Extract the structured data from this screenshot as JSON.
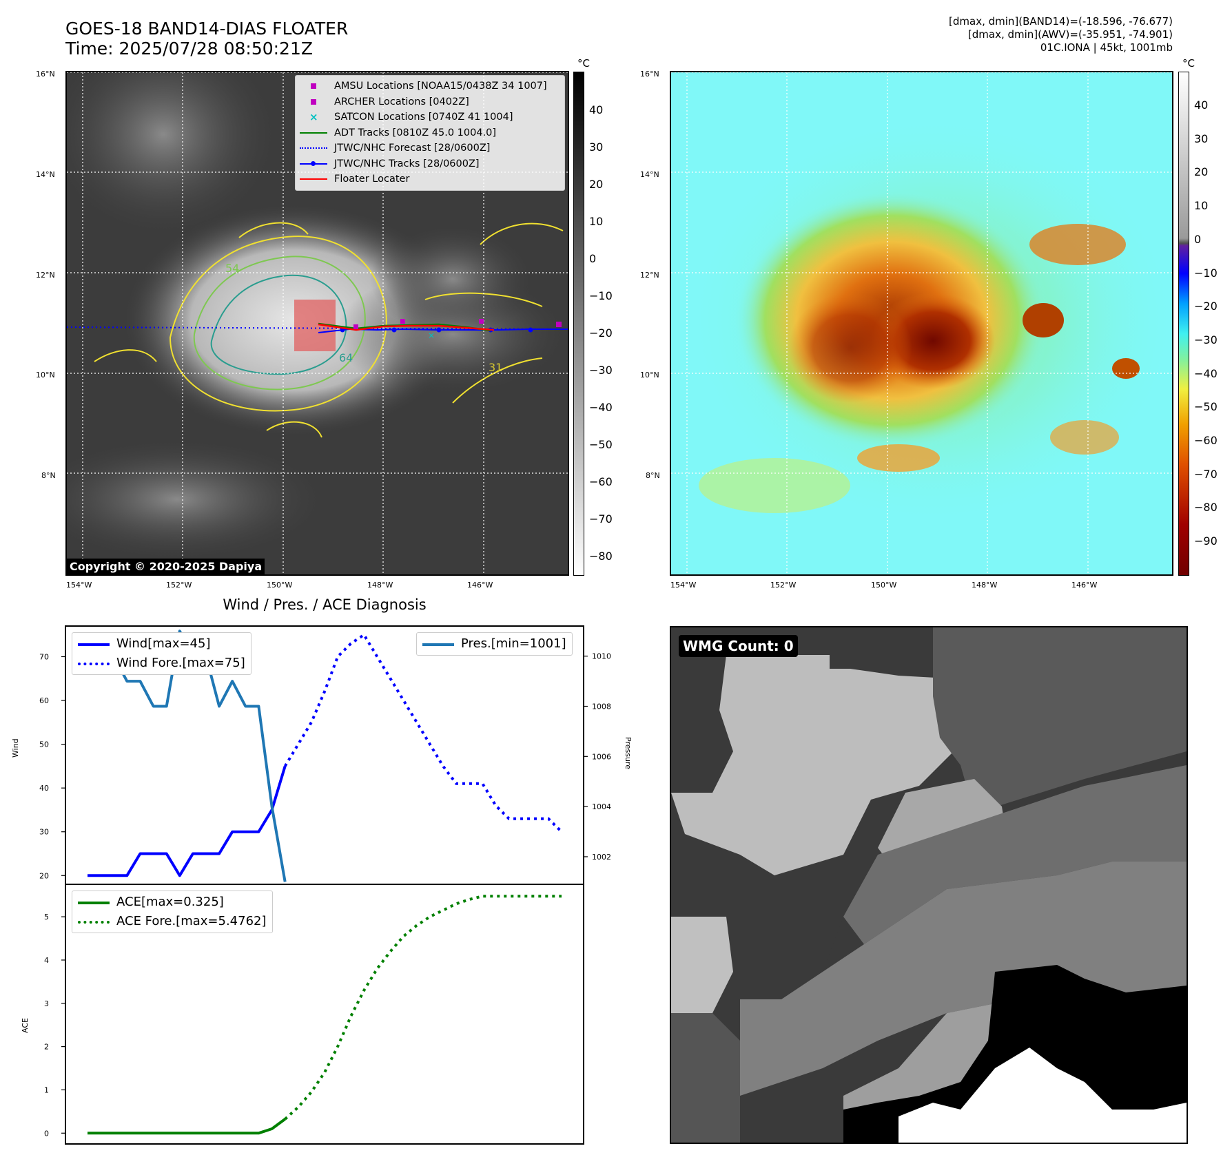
{
  "header": {
    "title_line1": "GOES-18 BAND14-DIAS FLOATER",
    "title_line2": "Time: 2025/07/28 08:50:21Z",
    "info_line1": "[dmax, dmin](BAND14)=(-18.596, -76.677)",
    "info_line2": "[dmax, dmin](AWV)=(-35.951, -74.901)",
    "info_line3": "01C.IONA | 45kt, 1001mb"
  },
  "map": {
    "lat_labels": [
      "16°N",
      "14°N",
      "12°N",
      "10°N",
      "8°N"
    ],
    "lon_labels": [
      "154°W",
      "152°W",
      "150°W",
      "148°W",
      "146°W"
    ],
    "copyright": "Copyright © 2020-2025 Dapiya",
    "legend": [
      {
        "label": "AMSU Locations [NOAA15/0438Z 34 1007]",
        "symbol": "square",
        "color": "#c000c0"
      },
      {
        "label": "ARCHER Locations [0402Z]",
        "symbol": "square",
        "color": "#c000c0"
      },
      {
        "label": "SATCON Locations [0740Z 41 1004]",
        "symbol": "x",
        "color": "#00c0c0"
      },
      {
        "label": "ADT Tracks [0810Z 45.0 1004.0]",
        "symbol": "line",
        "color": "#008000"
      },
      {
        "label": "JTWC/NHC Forecast [28/0600Z]",
        "symbol": "dotted",
        "color": "#0000ff"
      },
      {
        "label": "JTWC/NHC Tracks [28/0600Z]",
        "symbol": "line-dot",
        "color": "#0000ff"
      },
      {
        "label": "Floater Locater",
        "symbol": "line",
        "color": "#ff0000"
      }
    ],
    "contour_labels": [
      "54",
      "64",
      "31"
    ]
  },
  "colorbar_gray": {
    "unit": "°C",
    "ticks": [
      "40",
      "30",
      "20",
      "10",
      "0",
      "−10",
      "−20",
      "−30",
      "−40",
      "−50",
      "−60",
      "−70",
      "−80"
    ]
  },
  "colorbar_color": {
    "unit": "°C",
    "ticks": [
      "40",
      "30",
      "20",
      "10",
      "0",
      "−10",
      "−20",
      "−30",
      "−40",
      "−50",
      "−60",
      "−70",
      "−80",
      "−90"
    ]
  },
  "wmg": {
    "label": "WMG Count: 0"
  },
  "chart_data": [
    {
      "type": "line",
      "title": "Wind / Pres. / ACE Diagnosis",
      "ylabel": "Wind",
      "ylabel_right": "Pressure",
      "ylim": [
        18,
        77
      ],
      "ylim_right": [
        1000.9,
        1011.2
      ],
      "yticks": [
        20,
        30,
        40,
        50,
        60,
        70
      ],
      "yticks_right": [
        1002,
        1004,
        1006,
        1008,
        1010
      ],
      "x": [
        0,
        1,
        2,
        3,
        4,
        5,
        6,
        7,
        8,
        9,
        10,
        11,
        12,
        13,
        14,
        15,
        16,
        17,
        18,
        19,
        20,
        21,
        22,
        23,
        24,
        25,
        26,
        27,
        28,
        29,
        30,
        31,
        32,
        33,
        34,
        35,
        36
      ],
      "series": [
        {
          "name": "Wind[max=45]",
          "axis": "left",
          "style": "solid",
          "color": "#0000ff",
          "x": [
            0,
            1,
            2,
            3,
            4,
            5,
            6,
            7,
            8,
            9,
            10,
            11,
            12,
            13,
            14,
            15
          ],
          "values": [
            20,
            20,
            20,
            20,
            25,
            25,
            25,
            20,
            25,
            25,
            25,
            30,
            30,
            30,
            35,
            45
          ]
        },
        {
          "name": "Wind Fore.[max=75]",
          "axis": "left",
          "style": "dotted",
          "color": "#0000ff",
          "x": [
            15,
            16,
            17,
            18,
            19,
            20,
            21,
            22,
            23,
            24,
            25,
            26,
            27,
            28,
            29,
            30,
            31,
            32,
            33,
            34,
            35,
            36
          ],
          "values": [
            45,
            50,
            55,
            62,
            70,
            73,
            75,
            70,
            65,
            60,
            55,
            50,
            45,
            41,
            41,
            41,
            36,
            33,
            33,
            33,
            33,
            30
          ]
        },
        {
          "name": "Pres.[min=1001]",
          "axis": "right",
          "style": "solid",
          "color": "#1f77b4",
          "x": [
            0,
            1,
            2,
            3,
            4,
            5,
            6,
            7,
            8,
            9,
            10,
            11,
            12,
            13,
            14,
            15
          ],
          "values": [
            1010,
            1010,
            1010,
            1009,
            1009,
            1008,
            1008,
            1011,
            1010,
            1010,
            1008,
            1009,
            1008,
            1008,
            1004,
            1001
          ]
        }
      ]
    },
    {
      "type": "line",
      "ylabel": "ACE",
      "ylim": [
        -0.25,
        5.75
      ],
      "yticks": [
        0,
        1,
        2,
        3,
        4,
        5
      ],
      "series": [
        {
          "name": "ACE[max=0.325]",
          "style": "solid",
          "color": "#008000",
          "x": [
            0,
            1,
            2,
            3,
            4,
            5,
            6,
            7,
            8,
            9,
            10,
            11,
            12,
            13,
            14,
            15
          ],
          "values": [
            0,
            0,
            0,
            0,
            0,
            0,
            0,
            0,
            0,
            0,
            0,
            0,
            0,
            0,
            0.1,
            0.325
          ]
        },
        {
          "name": "ACE Fore.[max=5.4762]",
          "style": "dotted",
          "color": "#008000",
          "x": [
            15,
            16,
            17,
            18,
            19,
            20,
            21,
            22,
            23,
            24,
            25,
            26,
            27,
            28,
            29,
            30,
            31,
            32,
            33,
            34,
            35,
            36
          ],
          "values": [
            0.325,
            0.6,
            0.95,
            1.4,
            2.0,
            2.7,
            3.3,
            3.8,
            4.2,
            4.55,
            4.8,
            5.0,
            5.15,
            5.3,
            5.4,
            5.4762,
            5.4762,
            5.4762,
            5.4762,
            5.4762,
            5.4762,
            5.4762
          ]
        }
      ]
    }
  ]
}
